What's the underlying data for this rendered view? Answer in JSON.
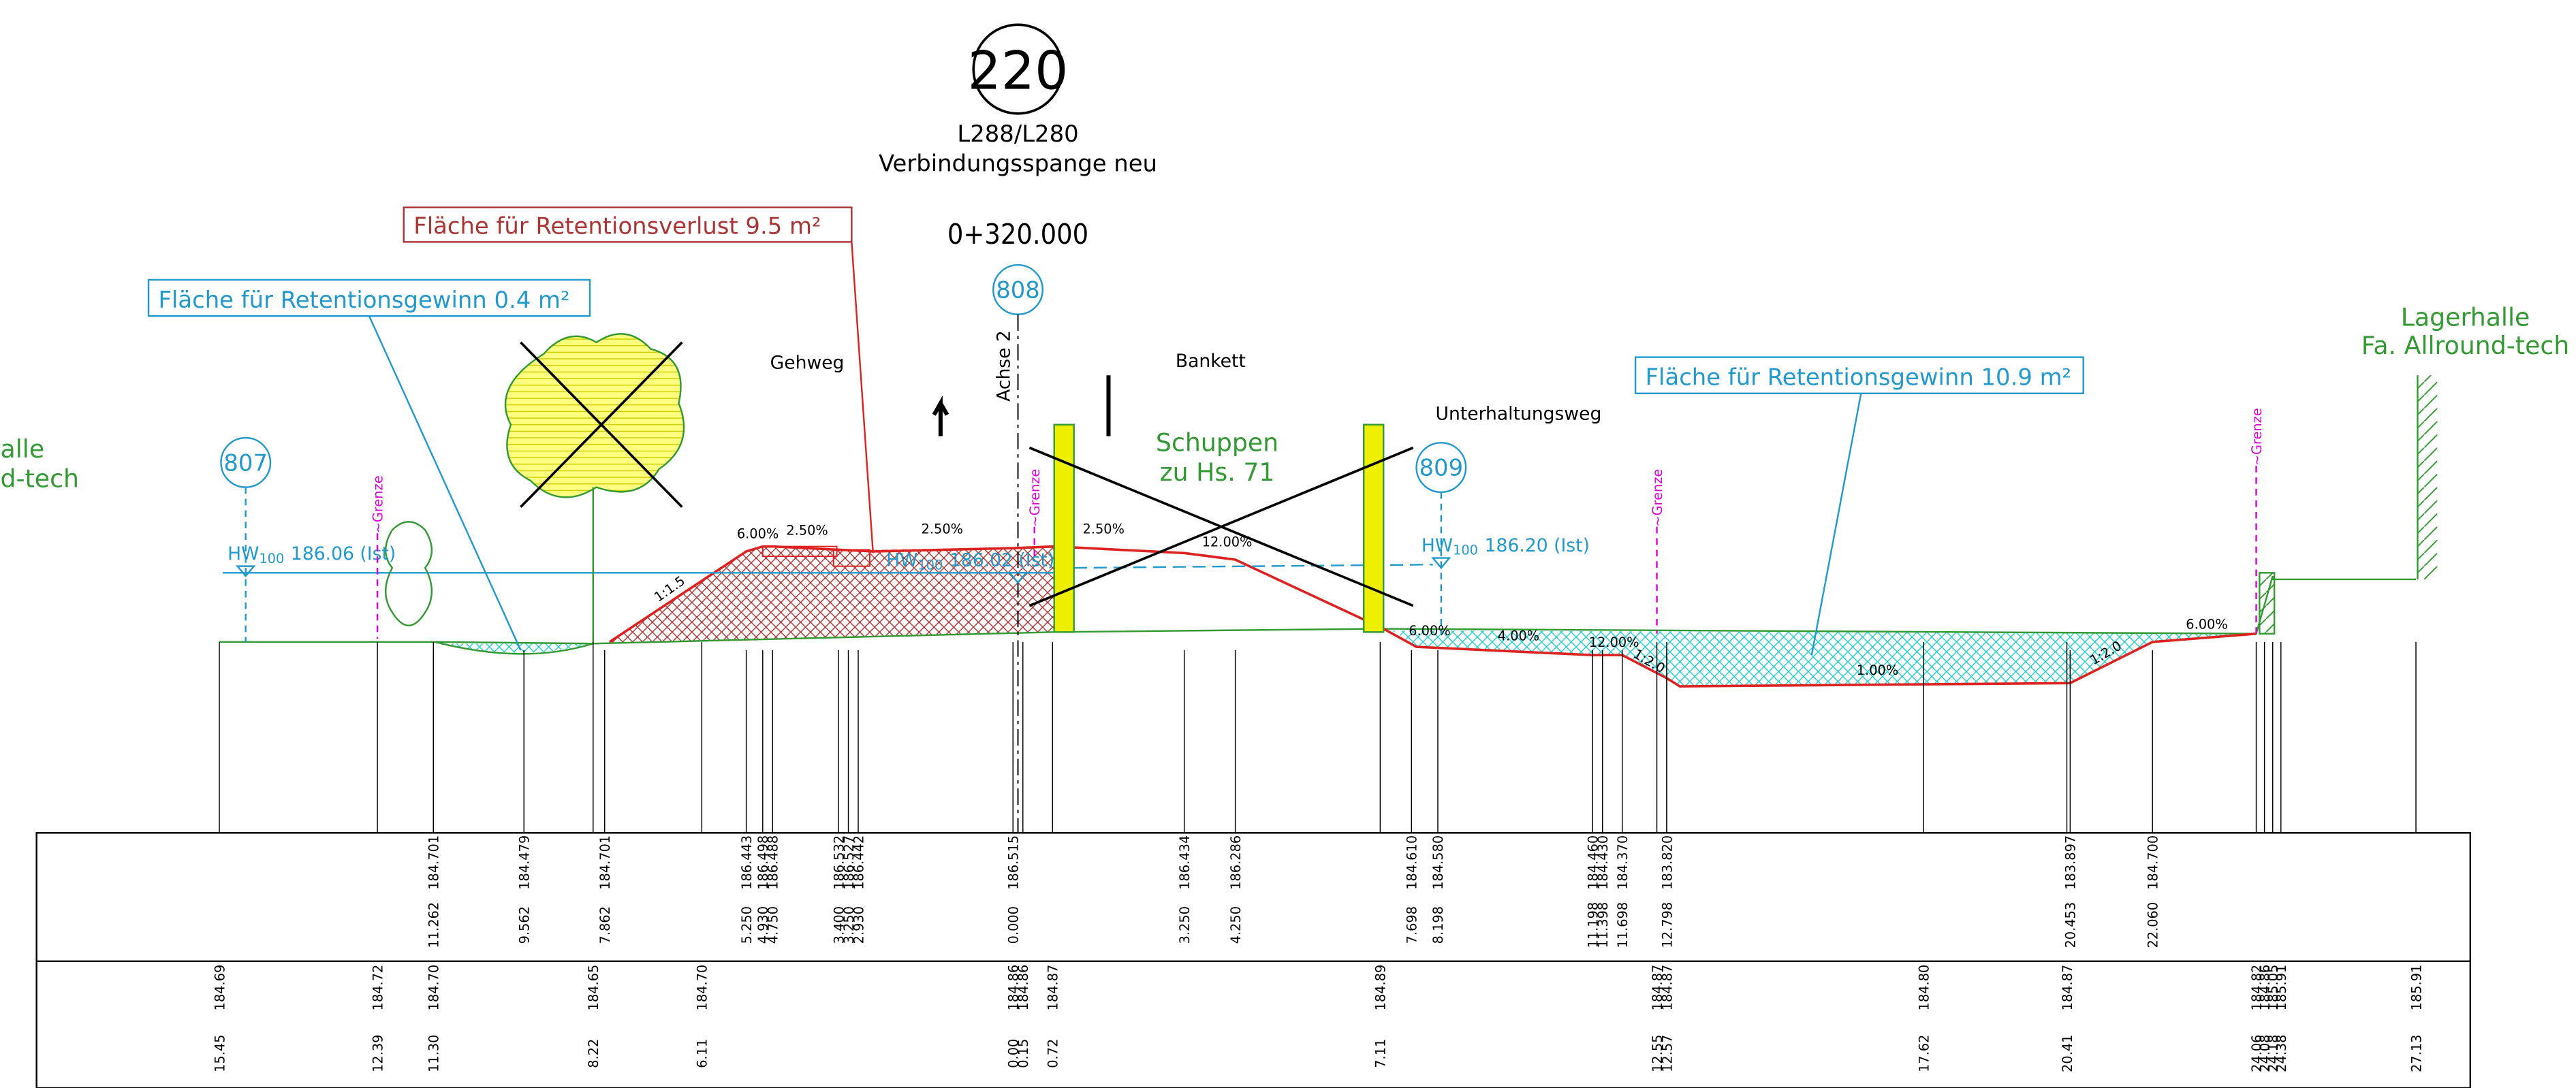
{
  "header": {
    "station": "220",
    "road": "L288/L280",
    "name": "Verbindungsspange neu",
    "chainage": "0+320.000"
  },
  "callouts": {
    "loss": "Fläche für Retentionsverlust 9.5 m²",
    "gain_left": "Fläche für Retentionsgewinn 0.4 m²",
    "gain_right": "Fläche für Retentionsgewinn 10.9 m²"
  },
  "points": [
    "807",
    "808",
    "809"
  ],
  "labels": {
    "gehweg": "Gehweg",
    "bankett": "Bankett",
    "weg": "Unterhaltungsweg",
    "achse": "Achse 2",
    "shed": [
      "Schuppen",
      "zu Hs. 71"
    ],
    "hall_right": [
      "Lagerhalle",
      "Fa. Allround-tech"
    ],
    "hall_left": [
      "alle",
      "d-tech"
    ],
    "border": "~Grenze"
  },
  "water": [
    {
      "hw": "HW",
      "sub": "100",
      "level": "186.06 (Ist)"
    },
    {
      "hw": "HW",
      "sub": "100",
      "level": "186.02 (Ist)"
    },
    {
      "hw": "HW",
      "sub": "100",
      "level": "186.20 (Ist)"
    }
  ],
  "slopes": [
    "6.00%",
    "2.50%",
    "2.50%",
    "2.50%",
    "12.00%",
    "6.00%",
    "4.00%",
    "12.00%",
    "1.00%",
    "6.00%",
    "1:1.5",
    "1:2.0",
    "1:2.0"
  ],
  "table": {
    "design": [
      [
        "184.701",
        "11.262"
      ],
      [
        "184.479",
        "9.562"
      ],
      [
        "184.701",
        "7.862"
      ],
      [
        "186.443",
        "5.250"
      ],
      [
        "186.498",
        "4.930"
      ],
      [
        "186.488",
        "4.750"
      ],
      [
        "186.532",
        "3.400"
      ],
      [
        "186.527",
        "3.250"
      ],
      [
        "186.442",
        "2.930"
      ],
      [
        "186.515",
        "0.000"
      ],
      [
        "186.434",
        "3.250"
      ],
      [
        "186.286",
        "4.250"
      ],
      [
        "184.610",
        "7.698"
      ],
      [
        "184.580",
        "8.198"
      ],
      [
        "184.460",
        "11.198"
      ],
      [
        "184.430",
        "11.398"
      ],
      [
        "184.370",
        "11.698"
      ],
      [
        "183.820",
        "12.798"
      ],
      [
        "183.897",
        "20.453"
      ],
      [
        "184.700",
        "22.060"
      ]
    ],
    "existing": [
      [
        "184.69",
        "15.45"
      ],
      [
        "184.72",
        "12.39"
      ],
      [
        "184.70",
        "11.30"
      ],
      [
        "184.65",
        "8.22"
      ],
      [
        "184.70",
        "6.11"
      ],
      [
        "184.86",
        "0.00"
      ],
      [
        "184.86",
        "0.15"
      ],
      [
        "184.87",
        "0.72"
      ],
      [
        "184.89",
        "7.11"
      ],
      [
        "184.87",
        "12.55"
      ],
      [
        "184.87",
        "12.57"
      ],
      [
        "184.80",
        "17.62"
      ],
      [
        "184.87",
        "20.41"
      ],
      [
        "184.82",
        "24.06"
      ],
      [
        "184.86",
        "24.08"
      ],
      [
        "185.05",
        "24.18"
      ],
      [
        "185.91",
        "24.38"
      ],
      [
        "185.91",
        "27.13"
      ]
    ]
  }
}
